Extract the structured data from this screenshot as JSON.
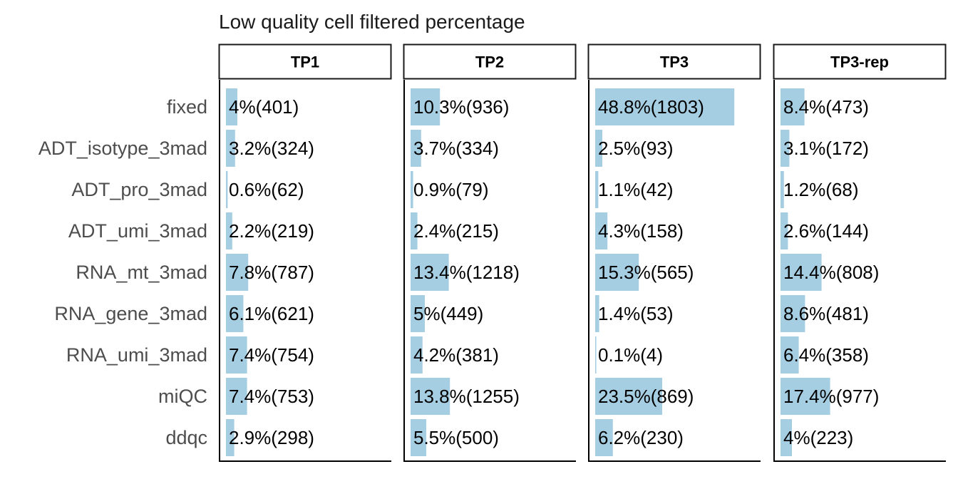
{
  "chart_data": {
    "type": "bar",
    "orientation": "horizontal",
    "title": "Low quality cell filtered percentage",
    "xlabel": "",
    "ylabel": "",
    "categories": [
      "fixed",
      "ADT_isotype_3mad",
      "ADT_pro_3mad",
      "ADT_umi_3mad",
      "RNA_mt_3mad",
      "RNA_gene_3mad",
      "RNA_umi_3mad",
      "miQC",
      "ddqc"
    ],
    "bar_color": "#a6cee3",
    "grid": false,
    "legend": "none",
    "xlim": [
      0,
      55
    ],
    "panels": [
      {
        "name": "TP1",
        "values": [
          4.0,
          3.2,
          0.6,
          2.2,
          7.8,
          6.1,
          7.4,
          7.4,
          2.9
        ],
        "labels": [
          "4%(401)",
          "3.2%(324)",
          "0.6%(62)",
          "2.2%(219)",
          "7.8%(787)",
          "6.1%(621)",
          "7.4%(754)",
          "7.4%(753)",
          "2.9%(298)"
        ]
      },
      {
        "name": "TP2",
        "values": [
          10.3,
          3.7,
          0.9,
          2.4,
          13.4,
          5.0,
          4.2,
          13.8,
          5.5
        ],
        "labels": [
          "10.3%(936)",
          "3.7%(334)",
          "0.9%(79)",
          "2.4%(215)",
          "13.4%(1218)",
          "5%(449)",
          "4.2%(381)",
          "13.8%(1255)",
          "5.5%(500)"
        ]
      },
      {
        "name": "TP3",
        "values": [
          48.8,
          2.5,
          1.1,
          4.3,
          15.3,
          1.4,
          0.1,
          23.5,
          6.2
        ],
        "labels": [
          "48.8%(1803)",
          "2.5%(93)",
          "1.1%(42)",
          "4.3%(158)",
          "15.3%(565)",
          "1.4%(53)",
          "0.1%(4)",
          "23.5%(869)",
          "6.2%(230)"
        ]
      },
      {
        "name": "TP3-rep",
        "values": [
          8.4,
          3.1,
          1.2,
          2.6,
          14.4,
          8.6,
          6.4,
          17.4,
          4.0
        ],
        "labels": [
          "8.4%(473)",
          "3.1%(172)",
          "1.2%(68)",
          "2.6%(144)",
          "14.4%(808)",
          "8.6%(481)",
          "6.4%(358)",
          "17.4%(977)",
          "4%(223)"
        ]
      }
    ]
  }
}
